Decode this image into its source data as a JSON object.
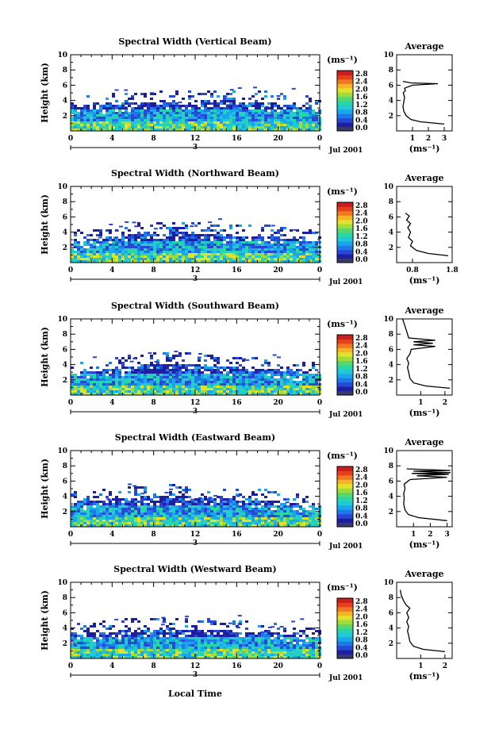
{
  "figure": {
    "xlabel": "Local Time",
    "date_label": "Jul 2001",
    "day_marker": "3",
    "colorbar": {
      "unit": "(ms⁻¹)",
      "ticks": [
        "0.0",
        "0.4",
        "0.8",
        "1.2",
        "1.6",
        "2.0",
        "2.4",
        "2.8"
      ],
      "colors": [
        "#3a3a6a",
        "#1e1ea0",
        "#2747d6",
        "#1f78e8",
        "#19a6ec",
        "#20c8d8",
        "#28d6a6",
        "#5ad66c",
        "#a0dc3c",
        "#e2e22c",
        "#f4b426",
        "#f07820",
        "#e4401c",
        "#c81e1e"
      ]
    },
    "heat_colors": [
      "#1e1ea0",
      "#2747d6",
      "#1f78e8",
      "#19a6ec",
      "#20c8d8",
      "#28d6a6",
      "#a0dc3c",
      "#e2e22c"
    ]
  },
  "chart_data": [
    {
      "type": "heatmap",
      "title": "Spectral Width (Vertical Beam)",
      "ylabel": "Height (km)",
      "xlim": [
        0,
        24
      ],
      "ylim": [
        0,
        10
      ],
      "xticks": [
        "0",
        "4",
        "8",
        "12",
        "16",
        "20",
        "0"
      ],
      "yticks": [
        "2",
        "4",
        "6",
        "8",
        "10"
      ],
      "echo_top_km": [
        3.2,
        3.4,
        3.6,
        3.8,
        3.8,
        3.9,
        4.0,
        4.1,
        4.1,
        4.0,
        3.9,
        3.7,
        3.4,
        3.0
      ],
      "profile": {
        "title": "Average",
        "xlabel": "(ms⁻¹)",
        "xlim": [
          0,
          3.5
        ],
        "xticks": [
          "1",
          "2",
          "3"
        ],
        "yticks": [
          "2",
          "4",
          "6",
          "8",
          "10"
        ],
        "points": [
          [
            3.0,
            0.9
          ],
          [
            1.5,
            1.2
          ],
          [
            0.9,
            1.5
          ],
          [
            0.6,
            2.0
          ],
          [
            0.45,
            2.6
          ],
          [
            0.4,
            3.2
          ],
          [
            0.45,
            3.8
          ],
          [
            0.5,
            4.4
          ],
          [
            0.42,
            5.0
          ],
          [
            0.55,
            5.3
          ],
          [
            0.5,
            5.6
          ],
          [
            1.0,
            6.0
          ],
          [
            2.6,
            6.2
          ],
          [
            0.9,
            6.3
          ],
          [
            0.4,
            6.5
          ]
        ]
      }
    },
    {
      "type": "heatmap",
      "title": "Spectral Width (Northward Beam)",
      "ylabel": "Height (km)",
      "xlim": [
        0,
        24
      ],
      "ylim": [
        0,
        10
      ],
      "xticks": [
        "0",
        "4",
        "8",
        "12",
        "16",
        "20",
        "0"
      ],
      "yticks": [
        "2",
        "4",
        "6",
        "8",
        "10"
      ],
      "echo_top_km": [
        2.8,
        3.2,
        3.5,
        3.8,
        4.0,
        4.0,
        4.1,
        4.0,
        3.8,
        3.7,
        3.6,
        3.4,
        3.1,
        2.8
      ],
      "profile": {
        "title": "Average",
        "xlabel": "(ms⁻¹)",
        "xlim": [
          0.4,
          1.8
        ],
        "xticks": [
          "0.8",
          "1.8"
        ],
        "yticks": [
          "2",
          "4",
          "6",
          "8",
          "10"
        ],
        "points": [
          [
            1.7,
            0.9
          ],
          [
            1.2,
            1.2
          ],
          [
            0.9,
            1.6
          ],
          [
            0.75,
            2.2
          ],
          [
            0.8,
            2.8
          ],
          [
            0.7,
            3.3
          ],
          [
            0.75,
            4.0
          ],
          [
            0.68,
            4.6
          ],
          [
            0.75,
            5.1
          ],
          [
            0.65,
            5.6
          ],
          [
            0.72,
            6.1
          ],
          [
            0.62,
            6.5
          ]
        ]
      }
    },
    {
      "type": "heatmap",
      "title": "Spectral Width (Southward Beam)",
      "ylabel": "Height (km)",
      "xlim": [
        0,
        24
      ],
      "ylim": [
        0,
        10
      ],
      "xticks": [
        "0",
        "4",
        "8",
        "12",
        "16",
        "20",
        "0"
      ],
      "yticks": [
        "2",
        "4",
        "6",
        "8",
        "10"
      ],
      "echo_top_km": [
        3.0,
        3.3,
        3.6,
        3.9,
        4.2,
        4.3,
        4.2,
        4.0,
        3.8,
        3.7,
        3.6,
        3.4,
        3.1,
        2.8
      ],
      "profile": {
        "title": "Average",
        "xlabel": "(ms⁻¹)",
        "xlim": [
          0,
          2.3
        ],
        "xticks": [
          "1",
          "2"
        ],
        "yticks": [
          "2",
          "4",
          "6",
          "8",
          "10"
        ],
        "points": [
          [
            2.2,
            0.9
          ],
          [
            1.2,
            1.2
          ],
          [
            0.7,
            1.6
          ],
          [
            0.55,
            2.2
          ],
          [
            0.5,
            3.0
          ],
          [
            0.45,
            3.6
          ],
          [
            0.5,
            4.2
          ],
          [
            0.42,
            4.8
          ],
          [
            0.55,
            5.4
          ],
          [
            0.6,
            6.0
          ],
          [
            1.6,
            6.4
          ],
          [
            0.7,
            6.6
          ],
          [
            1.5,
            6.8
          ],
          [
            0.7,
            7.0
          ],
          [
            1.6,
            7.2
          ],
          [
            0.5,
            7.5
          ],
          [
            0.4,
            8.5
          ],
          [
            0.3,
            9.5
          ],
          [
            0.25,
            10.0
          ]
        ]
      }
    },
    {
      "type": "heatmap",
      "title": "Spectral Width (Eastward Beam)",
      "ylabel": "Height (km)",
      "xlim": [
        0,
        24
      ],
      "ylim": [
        0,
        10
      ],
      "xticks": [
        "0",
        "4",
        "8",
        "12",
        "16",
        "20",
        "0"
      ],
      "yticks": [
        "2",
        "4",
        "6",
        "8",
        "10"
      ],
      "echo_top_km": [
        3.4,
        3.6,
        3.8,
        4.0,
        4.1,
        4.2,
        4.1,
        4.0,
        3.8,
        3.8,
        3.6,
        3.4,
        3.0,
        2.8
      ],
      "profile": {
        "title": "Average",
        "xlabel": "(ms⁻¹)",
        "xlim": [
          0,
          3.3
        ],
        "xticks": [
          "1",
          "2",
          "3"
        ],
        "yticks": [
          "2",
          "4",
          "6",
          "8",
          "10"
        ],
        "points": [
          [
            3.0,
            0.8
          ],
          [
            1.3,
            1.2
          ],
          [
            0.7,
            1.6
          ],
          [
            0.5,
            2.2
          ],
          [
            0.42,
            3.0
          ],
          [
            0.45,
            3.8
          ],
          [
            0.42,
            4.4
          ],
          [
            0.5,
            5.0
          ],
          [
            0.45,
            5.6
          ],
          [
            0.8,
            6.2
          ],
          [
            3.0,
            6.5
          ],
          [
            1.2,
            6.7
          ],
          [
            3.1,
            6.9
          ],
          [
            0.9,
            7.0
          ],
          [
            3.2,
            7.1
          ],
          [
            1.0,
            7.3
          ],
          [
            3.2,
            7.4
          ],
          [
            0.6,
            7.6
          ]
        ]
      }
    },
    {
      "type": "heatmap",
      "title": "Spectral Width (Westward Beam)",
      "ylabel": "Height (km)",
      "xlim": [
        0,
        24
      ],
      "ylim": [
        0,
        10
      ],
      "xticks": [
        "0",
        "4",
        "8",
        "12",
        "16",
        "20",
        "0"
      ],
      "yticks": [
        "2",
        "4",
        "6",
        "8",
        "10"
      ],
      "echo_top_km": [
        3.2,
        3.5,
        3.7,
        3.9,
        4.0,
        4.1,
        4.0,
        3.9,
        3.8,
        3.7,
        3.6,
        3.4,
        3.1,
        2.9
      ],
      "profile": {
        "title": "Average",
        "xlabel": "(ms⁻¹)",
        "xlim": [
          0,
          2.3
        ],
        "xticks": [
          "1",
          "2"
        ],
        "yticks": [
          "2",
          "4",
          "6",
          "8",
          "10"
        ],
        "points": [
          [
            2.0,
            0.9
          ],
          [
            1.1,
            1.2
          ],
          [
            0.7,
            1.6
          ],
          [
            0.55,
            2.2
          ],
          [
            0.5,
            3.0
          ],
          [
            0.45,
            3.6
          ],
          [
            0.5,
            4.2
          ],
          [
            0.42,
            4.8
          ],
          [
            0.5,
            5.4
          ],
          [
            0.42,
            6.0
          ],
          [
            0.55,
            6.6
          ],
          [
            0.4,
            7.0
          ],
          [
            0.3,
            7.5
          ],
          [
            0.2,
            8.2
          ],
          [
            0.15,
            9.0
          ]
        ]
      }
    }
  ]
}
